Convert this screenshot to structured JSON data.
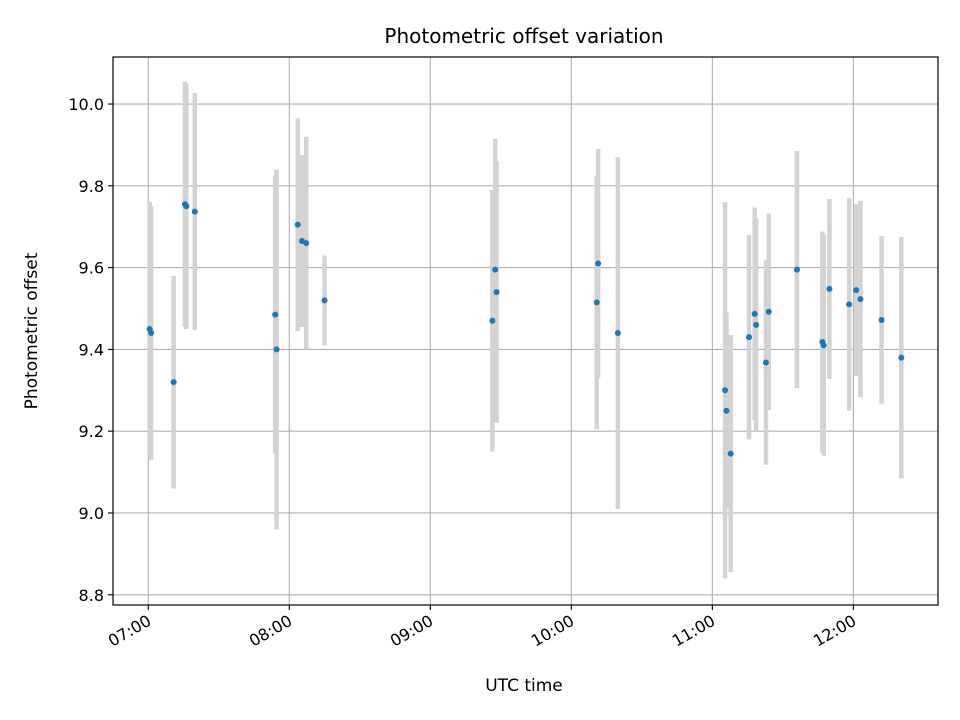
{
  "chart_data": {
    "type": "scatter",
    "title": "Photometric offset variation",
    "xlabel": "UTC time",
    "ylabel": "Photometric offset",
    "xlim": [
      6.75,
      12.6
    ],
    "ylim": [
      8.775,
      10.115
    ],
    "grid": true,
    "x_ticks": [
      7,
      8,
      9,
      10,
      11,
      12
    ],
    "x_tick_labels": [
      "07:00",
      "08:00",
      "09:00",
      "10:00",
      "11:00",
      "12:00"
    ],
    "y_ticks": [
      8.8,
      9.0,
      9.2,
      9.4,
      9.6,
      9.8,
      10.0
    ],
    "y_tick_labels": [
      "8.8",
      "9.0",
      "9.2",
      "9.4",
      "9.6",
      "9.8",
      "10.0"
    ],
    "colors": {
      "point": "#1f77b4",
      "errorbar": "#d3d3d3",
      "grid": "#b0b0b0"
    },
    "points": [
      {
        "x": 7.01,
        "y": 9.45,
        "err": 0.31
      },
      {
        "x": 7.02,
        "y": 9.44,
        "err": 0.31
      },
      {
        "x": 7.18,
        "y": 9.32,
        "err": 0.26
      },
      {
        "x": 7.26,
        "y": 9.755,
        "err": 0.3
      },
      {
        "x": 7.27,
        "y": 9.75,
        "err": 0.3
      },
      {
        "x": 7.33,
        "y": 9.737,
        "err": 0.29
      },
      {
        "x": 7.9,
        "y": 9.485,
        "err": 0.34
      },
      {
        "x": 7.91,
        "y": 9.4,
        "err": 0.44
      },
      {
        "x": 8.06,
        "y": 9.705,
        "err": 0.26
      },
      {
        "x": 8.09,
        "y": 9.665,
        "err": 0.21
      },
      {
        "x": 8.12,
        "y": 9.66,
        "err": 0.26
      },
      {
        "x": 8.25,
        "y": 9.52,
        "err": 0.11
      },
      {
        "x": 9.44,
        "y": 9.47,
        "err": 0.32
      },
      {
        "x": 9.46,
        "y": 9.595,
        "err": 0.32
      },
      {
        "x": 9.47,
        "y": 9.54,
        "err": 0.32
      },
      {
        "x": 10.18,
        "y": 9.515,
        "err": 0.31
      },
      {
        "x": 10.19,
        "y": 9.61,
        "err": 0.28
      },
      {
        "x": 10.33,
        "y": 9.44,
        "err": 0.43
      },
      {
        "x": 11.09,
        "y": 9.3,
        "err": 0.46
      },
      {
        "x": 11.1,
        "y": 9.25,
        "err": 0.24
      },
      {
        "x": 11.13,
        "y": 9.145,
        "err": 0.29
      },
      {
        "x": 11.26,
        "y": 9.43,
        "err": 0.25
      },
      {
        "x": 11.3,
        "y": 9.487,
        "err": 0.26
      },
      {
        "x": 11.31,
        "y": 9.46,
        "err": 0.26
      },
      {
        "x": 11.38,
        "y": 9.368,
        "err": 0.25
      },
      {
        "x": 11.4,
        "y": 9.492,
        "err": 0.24
      },
      {
        "x": 11.6,
        "y": 9.595,
        "err": 0.29
      },
      {
        "x": 11.78,
        "y": 9.418,
        "err": 0.27
      },
      {
        "x": 11.79,
        "y": 9.41,
        "err": 0.27
      },
      {
        "x": 11.83,
        "y": 9.548,
        "err": 0.22
      },
      {
        "x": 11.97,
        "y": 9.51,
        "err": 0.26
      },
      {
        "x": 12.02,
        "y": 9.545,
        "err": 0.21
      },
      {
        "x": 12.05,
        "y": 9.523,
        "err": 0.24
      },
      {
        "x": 12.2,
        "y": 9.472,
        "err": 0.205
      },
      {
        "x": 12.34,
        "y": 9.38,
        "err": 0.295
      }
    ]
  }
}
